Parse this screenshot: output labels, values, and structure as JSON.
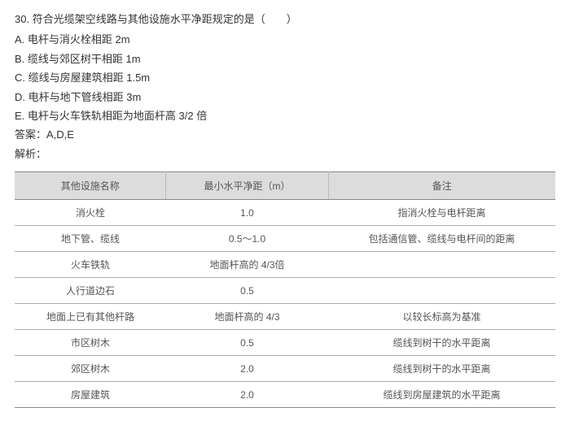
{
  "question": {
    "number": "30.",
    "stem": "符合光缆架空线路与其他设施水平净距规定的是（　　）",
    "options": [
      {
        "key": "A.",
        "text": "电杆与消火栓相距 2m"
      },
      {
        "key": "B.",
        "text": "缆线与郊区树干相距 1m"
      },
      {
        "key": "C.",
        "text": "缆线与房屋建筑相距 1.5m"
      },
      {
        "key": "D.",
        "text": "电杆与地下管线相距 3m"
      },
      {
        "key": "E.",
        "text": "电杆与火车铁轨相距为地面杆高 3/2 倍"
      }
    ],
    "answer_label": "答案：",
    "answer_value": "A,D,E",
    "explain_label": "解析："
  },
  "table": {
    "columns": [
      "其他设施名称",
      "最小水平净距（m）",
      "备注"
    ],
    "col_widths": [
      "28%",
      "30%",
      "42%"
    ],
    "header_bg": "#dcdcdc",
    "border_color": "#888888",
    "row_border_color": "#aaaaaa",
    "text_color": "#555555",
    "fontsize": 12,
    "rows": [
      [
        "消火栓",
        "1.0",
        "指消火栓与电杆距离"
      ],
      [
        "地下管、缆线",
        "0.5～1.0",
        "包括通信管、缆线与电杆间的距离"
      ],
      [
        "火车铁轨",
        "地面杆高的 4/3倍",
        ""
      ],
      [
        "人行道边石",
        "0.5",
        ""
      ],
      [
        "地面上已有其他杆路",
        "地面杆高的 4/3",
        "以较长标高为基准"
      ],
      [
        "市区树木",
        "0.5",
        "缆线到树干的水平距离"
      ],
      [
        "郊区树木",
        "2.0",
        "缆线到树干的水平距离"
      ],
      [
        "房屋建筑",
        "2.0",
        "缆线到房屋建筑的水平距离"
      ]
    ]
  }
}
